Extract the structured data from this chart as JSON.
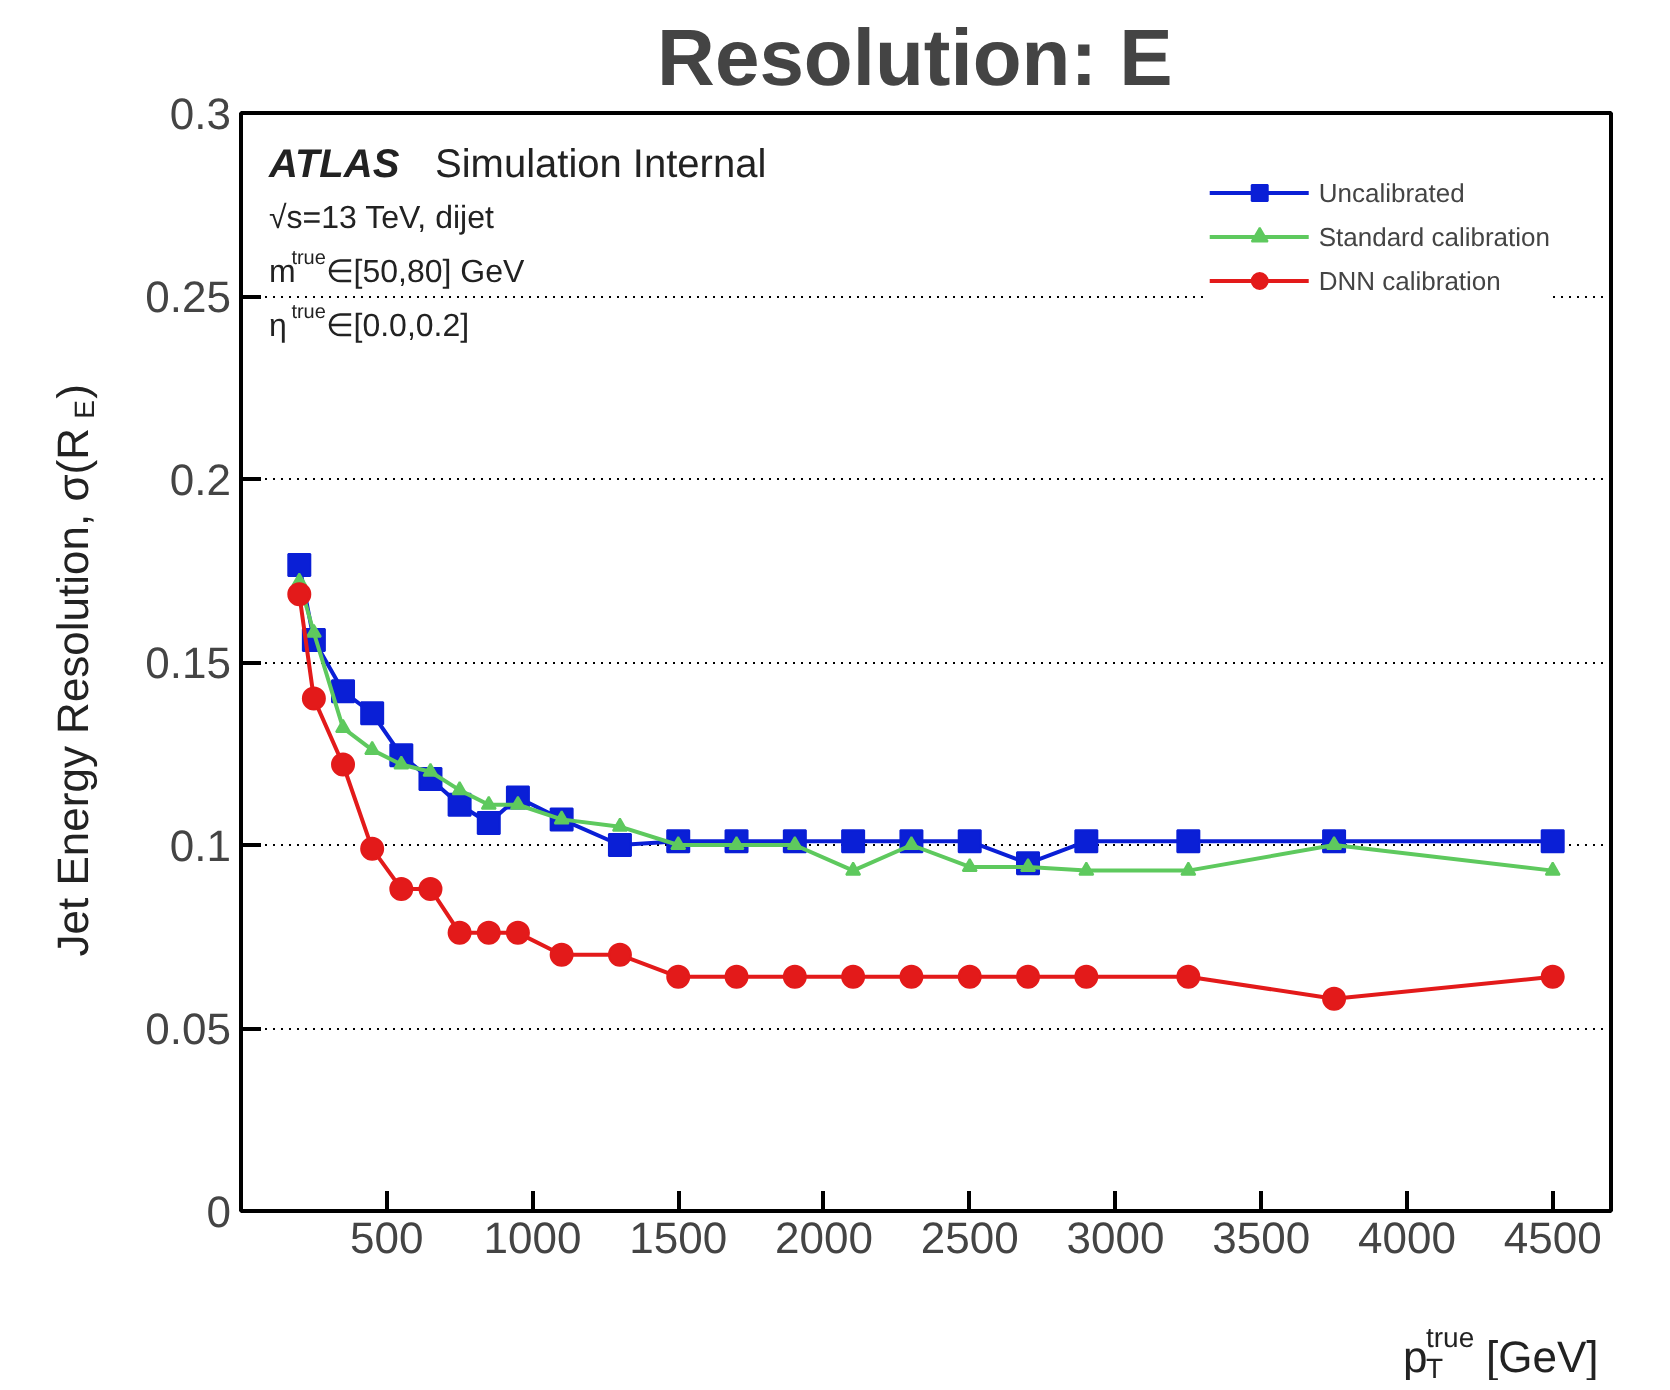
{
  "chart_data": {
    "type": "line",
    "title": "Resolution:  E",
    "xlabel": "p$_{T}$$^{true}$ [GeV]",
    "ylabel": "Jet Energy Resolution, σ(R$_{E}$)",
    "x": [
      200,
      250,
      350,
      450,
      550,
      650,
      750,
      850,
      950,
      1100,
      1300,
      1500,
      1700,
      1900,
      2100,
      2300,
      2500,
      2700,
      2900,
      3250,
      3750,
      4500
    ],
    "series": [
      {
        "name": "Uncalibrated",
        "color": "#0a1fd6",
        "marker": "square",
        "values": [
          0.1765,
          0.156,
          0.142,
          0.136,
          0.1245,
          0.118,
          0.111,
          0.106,
          0.113,
          0.107,
          0.1,
          0.101,
          0.101,
          0.101,
          0.101,
          0.101,
          0.101,
          0.095,
          0.101,
          0.101,
          0.101,
          0.101
        ]
      },
      {
        "name": "Standard calibration",
        "color": "#5ec95e",
        "marker": "triangle",
        "values": [
          0.172,
          0.158,
          0.132,
          0.126,
          0.122,
          0.12,
          0.115,
          0.111,
          0.111,
          0.107,
          0.105,
          0.1,
          0.1,
          0.1,
          0.093,
          0.1,
          0.094,
          0.094,
          0.093,
          0.093,
          0.1,
          0.093
        ]
      },
      {
        "name": "DNN calibration",
        "color": "#e31a1a",
        "marker": "circle",
        "values": [
          0.1685,
          0.14,
          0.122,
          0.099,
          0.088,
          0.088,
          0.076,
          0.076,
          0.076,
          0.07,
          0.07,
          0.064,
          0.064,
          0.064,
          0.064,
          0.064,
          0.064,
          0.064,
          0.064,
          0.064,
          0.058,
          0.064
        ]
      }
    ],
    "xlim": [
      0,
      4700
    ],
    "ylim": [
      0,
      0.3
    ],
    "xticks": [
      500,
      1000,
      1500,
      2000,
      2500,
      3000,
      3500,
      4000,
      4500
    ],
    "yticks": [
      0,
      0.05,
      0.1,
      0.15,
      0.2,
      0.25,
      0.3
    ],
    "grid": "y",
    "legend": "top right",
    "line_style": "solid",
    "annotations": [
      "ATLAS Simulation Internal",
      "√s=13 TeV, dijet",
      "m$^{true}$∈[50,80] GeV",
      "η$^{true}$∈[0.0,0.2]"
    ]
  }
}
